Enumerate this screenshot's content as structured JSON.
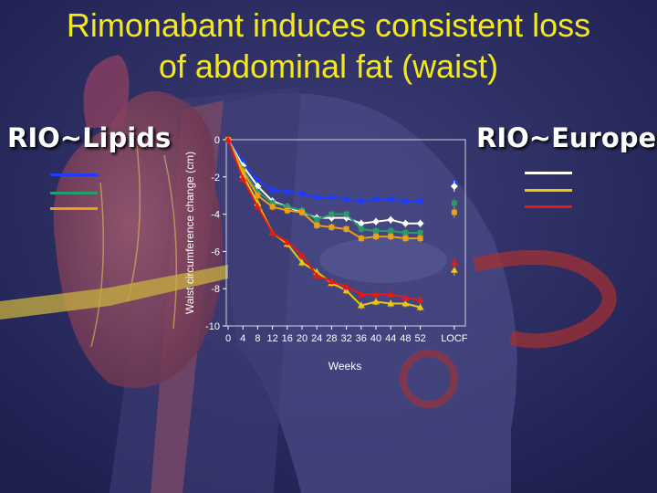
{
  "title": {
    "line1": "Rimonabant induces consistent loss",
    "line2": "of abdominal fat (waist)"
  },
  "studies": {
    "left": "RIO~Lipids",
    "right": "RIO~Europe"
  },
  "colors": {
    "background": "#2a2c5c",
    "title": "#f2e81c",
    "blue": "#1e3cff",
    "green": "#2a9a6a",
    "orange": "#e8a018",
    "white": "#ffffff",
    "yellow": "#e8c810",
    "red": "#e81818"
  },
  "legend": {
    "left": [
      {
        "color": "#1e3cff",
        "label": ""
      },
      {
        "color": "#2a9a6a",
        "label": ""
      },
      {
        "color": "#e8a018",
        "label": ""
      }
    ],
    "right": [
      {
        "color": "#ffffff",
        "label": ""
      },
      {
        "color": "#e8c810",
        "label": ""
      },
      {
        "color": "#e81818",
        "label": ""
      }
    ]
  },
  "chart_data": {
    "type": "line",
    "xlabel": "Weeks",
    "ylabel": "Waist circumference change (cm)",
    "ylim": [
      -10,
      0
    ],
    "yticks": [
      0,
      -2,
      -4,
      -6,
      -8,
      -10
    ],
    "x": [
      0,
      4,
      8,
      12,
      16,
      20,
      24,
      28,
      32,
      36,
      40,
      44,
      48,
      52
    ],
    "xtick_labels": [
      "0",
      "4",
      "8",
      "12",
      "16",
      "20",
      "24",
      "28",
      "32",
      "36",
      "40",
      "44",
      "48",
      "52",
      "LOCF"
    ],
    "series": [
      {
        "key": "lipids_blue",
        "color": "#1e3cff",
        "marker": "circle",
        "values": [
          0,
          -1.2,
          -2.2,
          -2.7,
          -2.8,
          -2.9,
          -3.1,
          -3.1,
          -3.2,
          -3.3,
          -3.2,
          -3.2,
          -3.3,
          -3.3
        ],
        "locf": -2.3
      },
      {
        "key": "europe_white",
        "color": "#ffffff",
        "marker": "diamond",
        "values": [
          0,
          -1.4,
          -2.5,
          -3.3,
          -3.6,
          -3.9,
          -4.2,
          -4.2,
          -4.2,
          -4.5,
          -4.4,
          -4.3,
          -4.5,
          -4.5
        ],
        "locf": -2.5
      },
      {
        "key": "lipids_green",
        "color": "#2a9a6a",
        "marker": "square",
        "values": [
          0,
          -1.6,
          -2.8,
          -3.4,
          -3.6,
          -3.8,
          -4.3,
          -4.0,
          -4.0,
          -4.8,
          -4.9,
          -4.9,
          -5.0,
          -5.0
        ],
        "locf": -3.4
      },
      {
        "key": "lipids_orange",
        "color": "#e8a018",
        "marker": "square",
        "values": [
          0,
          -1.7,
          -3.0,
          -3.6,
          -3.8,
          -3.9,
          -4.6,
          -4.7,
          -4.8,
          -5.3,
          -5.2,
          -5.2,
          -5.3,
          -5.3
        ],
        "locf": -3.9
      },
      {
        "key": "europe_yellow",
        "color": "#e8c810",
        "marker": "triangle",
        "values": [
          0,
          -1.9,
          -3.4,
          -5.0,
          -5.6,
          -6.6,
          -7.1,
          -7.7,
          -8.1,
          -8.9,
          -8.7,
          -8.8,
          -8.8,
          -9.0
        ],
        "locf": -7.0
      },
      {
        "key": "europe_red",
        "color": "#e81818",
        "marker": "triangle",
        "values": [
          0,
          -2.1,
          -3.6,
          -5.0,
          -5.5,
          -6.2,
          -7.3,
          -7.6,
          -7.9,
          -8.3,
          -8.3,
          -8.3,
          -8.5,
          -8.6
        ],
        "locf": -6.6
      }
    ]
  }
}
